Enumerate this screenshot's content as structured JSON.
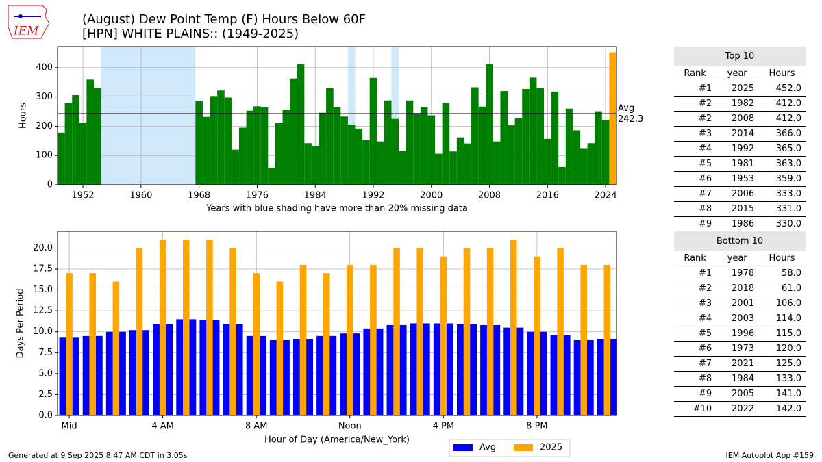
{
  "chart_data": [
    {
      "type": "bar",
      "title": "(August) Dew Point Temp (F) Hours Below 60F",
      "subtitle": "[HPN] WHITE PLAINS:: (1949-2025)",
      "xlabel": "Years with blue shading have more than 20% missing data",
      "ylabel": "Hours",
      "x": [
        1949,
        1950,
        1951,
        1952,
        1953,
        1954,
        1955,
        1956,
        1957,
        1958,
        1959,
        1960,
        1961,
        1962,
        1963,
        1964,
        1965,
        1966,
        1967,
        1968,
        1969,
        1970,
        1971,
        1972,
        1973,
        1974,
        1975,
        1976,
        1977,
        1978,
        1979,
        1980,
        1981,
        1982,
        1983,
        1984,
        1985,
        1986,
        1987,
        1988,
        1989,
        1990,
        1991,
        1992,
        1993,
        1994,
        1995,
        1996,
        1997,
        1998,
        1999,
        2000,
        2001,
        2002,
        2003,
        2004,
        2005,
        2006,
        2007,
        2008,
        2009,
        2010,
        2011,
        2012,
        2013,
        2014,
        2015,
        2016,
        2017,
        2018,
        2019,
        2020,
        2021,
        2022,
        2023,
        2024,
        2025
      ],
      "values": [
        178,
        279,
        306,
        211,
        359,
        330,
        null,
        null,
        null,
        null,
        null,
        null,
        null,
        null,
        null,
        null,
        null,
        null,
        null,
        285,
        232,
        303,
        322,
        298,
        120,
        195,
        253,
        268,
        264,
        58,
        212,
        257,
        363,
        412,
        142,
        133,
        246,
        330,
        264,
        233,
        205,
        192,
        152,
        365,
        148,
        288,
        225,
        115,
        288,
        245,
        265,
        237,
        106,
        279,
        114,
        162,
        141,
        333,
        267,
        412,
        148,
        320,
        203,
        227,
        327,
        366,
        331,
        157,
        318,
        61,
        260,
        186,
        125,
        142,
        251,
        222,
        452
      ],
      "color": "#008000",
      "last_color": "#ffa500",
      "shaded_ranges": [
        [
          1954.5,
          1967.5
        ],
        [
          1988.5,
          1989.5
        ],
        [
          1994.5,
          1995.5
        ]
      ],
      "shade_color": "#cfe8fc",
      "avg": 242.3,
      "avg_label": "Avg",
      "xlim": [
        1948.5,
        2025.5
      ],
      "xticks": [
        1952,
        1960,
        1968,
        1976,
        1984,
        1992,
        2000,
        2008,
        2016,
        2024
      ],
      "ylim": [
        0,
        472
      ],
      "yticks": [
        0,
        100,
        200,
        300,
        400
      ],
      "grid": true
    },
    {
      "type": "bar",
      "xlabel": "Hour of Day (America/New_York)",
      "ylabel": "Days Per Period",
      "x": [
        0,
        1,
        2,
        3,
        4,
        5,
        6,
        7,
        8,
        9,
        10,
        11,
        12,
        13,
        14,
        15,
        16,
        17,
        18,
        19,
        20,
        21,
        22,
        23
      ],
      "series": [
        {
          "name": "Avg",
          "color": "#0000ff",
          "values": [
            9.3,
            9.5,
            10.0,
            10.2,
            10.9,
            11.5,
            11.4,
            10.9,
            9.5,
            9.0,
            9.1,
            9.5,
            9.8,
            10.4,
            10.8,
            11.0,
            11.0,
            10.9,
            10.8,
            10.5,
            10.0,
            9.6,
            9.0,
            9.1
          ]
        },
        {
          "name": "2025",
          "color": "#ffa500",
          "values": [
            17,
            17,
            16,
            20,
            21,
            21,
            21,
            20,
            17,
            16,
            18,
            17,
            18,
            18,
            20,
            20,
            19,
            20,
            20,
            21,
            19,
            20,
            18,
            18
          ]
        }
      ],
      "xlim": [
        -0.5,
        23.4
      ],
      "xticks": [
        {
          "value": 0,
          "label": "Mid"
        },
        {
          "value": 4,
          "label": "4 AM"
        },
        {
          "value": 8,
          "label": "8 AM"
        },
        {
          "value": 12,
          "label": "Noon"
        },
        {
          "value": 16,
          "label": "4 PM"
        },
        {
          "value": 20,
          "label": "8 PM"
        }
      ],
      "ylim": [
        0,
        22
      ],
      "yticks": [
        {
          "value": 0,
          "label": "0.0"
        },
        2.5,
        {
          "value": 5,
          "label": "5.0"
        },
        7.5,
        {
          "value": 10,
          "label": "10.0"
        },
        12.5,
        {
          "value": 15,
          "label": "15.0"
        },
        17.5,
        {
          "value": 20,
          "label": "20.0"
        }
      ],
      "grid": true,
      "legend": "bottom"
    }
  ],
  "tables": [
    {
      "title": "Top 10",
      "columns": [
        "Rank",
        "year",
        "Hours"
      ],
      "rows": [
        [
          "#1",
          "2025",
          "452.0"
        ],
        [
          "#2",
          "1982",
          "412.0"
        ],
        [
          "#2",
          "2008",
          "412.0"
        ],
        [
          "#3",
          "2014",
          "366.0"
        ],
        [
          "#4",
          "1992",
          "365.0"
        ],
        [
          "#5",
          "1981",
          "363.0"
        ],
        [
          "#6",
          "1953",
          "359.0"
        ],
        [
          "#7",
          "2006",
          "333.0"
        ],
        [
          "#8",
          "2015",
          "331.0"
        ],
        [
          "#9",
          "1986",
          "330.0"
        ]
      ]
    },
    {
      "title": "Bottom 10",
      "columns": [
        "Rank",
        "year",
        "Hours"
      ],
      "rows": [
        [
          "#1",
          "1978",
          "58.0"
        ],
        [
          "#2",
          "2018",
          "61.0"
        ],
        [
          "#3",
          "2001",
          "106.0"
        ],
        [
          "#4",
          "2003",
          "114.0"
        ],
        [
          "#5",
          "1996",
          "115.0"
        ],
        [
          "#6",
          "1973",
          "120.0"
        ],
        [
          "#7",
          "2021",
          "125.0"
        ],
        [
          "#8",
          "1984",
          "133.0"
        ],
        [
          "#9",
          "2005",
          "141.0"
        ],
        [
          "#10",
          "2022",
          "142.0"
        ]
      ]
    }
  ],
  "logo": "IEM",
  "footer": {
    "left": "Generated at 9 Sep 2025 8:47 AM CDT in 3.05s",
    "right": "IEM Autoplot App #159"
  }
}
